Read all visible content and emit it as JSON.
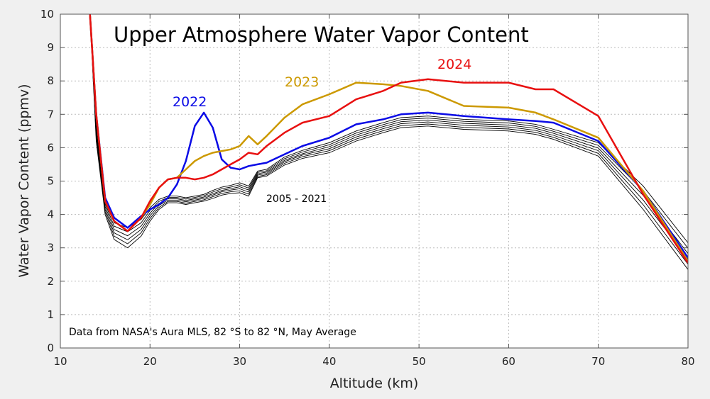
{
  "chart_data": {
    "type": "line",
    "title": "Upper Atmosphere Water Vapor Content",
    "xlabel": "Altitude (km)",
    "ylabel": "Water Vapor Content (ppmv)",
    "xlim": [
      10,
      80
    ],
    "ylim": [
      0,
      10
    ],
    "xticks": [
      10,
      20,
      30,
      40,
      50,
      60,
      70,
      80
    ],
    "yticks": [
      0,
      1,
      2,
      3,
      4,
      5,
      6,
      7,
      8,
      9,
      10
    ],
    "grid": true,
    "annotation": "Data from NASA's Aura MLS, 82 °S to 82 °N, May Average",
    "background_label": "2005 - 2021",
    "x": [
      13.3,
      14,
      15,
      16,
      17.5,
      19,
      20,
      21,
      22,
      23,
      24,
      25,
      26,
      27,
      28,
      29,
      30,
      31,
      32,
      33,
      35,
      37,
      40,
      43,
      46,
      48,
      51,
      55,
      60,
      63,
      65,
      70,
      75,
      80
    ],
    "background_series": [
      [
        10,
        6.2,
        4.0,
        3.25,
        3.0,
        3.35,
        3.8,
        4.15,
        4.35,
        4.35,
        4.3,
        4.35,
        4.4,
        4.48,
        4.58,
        4.63,
        4.65,
        4.55,
        5.1,
        5.15,
        5.48,
        5.68,
        5.85,
        6.2,
        6.45,
        6.6,
        6.65,
        6.55,
        6.5,
        6.4,
        6.25,
        5.75,
        4.15,
        2.35
      ],
      [
        10,
        6.32,
        4.08,
        3.35,
        3.12,
        3.45,
        3.88,
        4.21,
        4.39,
        4.39,
        4.34,
        4.39,
        4.44,
        4.53,
        4.63,
        4.68,
        4.71,
        4.61,
        5.14,
        5.19,
        5.53,
        5.73,
        5.91,
        6.26,
        6.51,
        6.66,
        6.71,
        6.61,
        6.56,
        6.46,
        6.31,
        5.83,
        4.29,
        2.51
      ],
      [
        10,
        6.44,
        4.16,
        3.45,
        3.24,
        3.55,
        3.96,
        4.27,
        4.43,
        4.43,
        4.38,
        4.43,
        4.48,
        4.58,
        4.68,
        4.73,
        4.77,
        4.67,
        5.18,
        5.23,
        5.58,
        5.78,
        5.97,
        6.32,
        6.57,
        6.72,
        6.77,
        6.67,
        6.62,
        6.52,
        6.37,
        5.91,
        4.43,
        2.67
      ],
      [
        10,
        6.56,
        4.24,
        3.55,
        3.36,
        3.65,
        4.04,
        4.33,
        4.47,
        4.47,
        4.42,
        4.47,
        4.52,
        4.62,
        4.72,
        4.77,
        4.83,
        4.73,
        5.22,
        5.27,
        5.62,
        5.82,
        6.03,
        6.38,
        6.63,
        6.78,
        6.83,
        6.73,
        6.68,
        6.58,
        6.43,
        5.99,
        4.57,
        2.83
      ],
      [
        10,
        6.68,
        4.32,
        3.65,
        3.48,
        3.75,
        4.12,
        4.39,
        4.51,
        4.51,
        4.46,
        4.51,
        4.56,
        4.67,
        4.77,
        4.82,
        4.89,
        4.79,
        5.26,
        5.31,
        5.67,
        5.87,
        6.09,
        6.44,
        6.69,
        6.84,
        6.89,
        6.79,
        6.74,
        6.64,
        6.49,
        6.07,
        4.71,
        2.99
      ],
      [
        10,
        6.8,
        4.4,
        3.75,
        3.6,
        3.85,
        4.2,
        4.45,
        4.55,
        4.55,
        4.5,
        4.55,
        4.6,
        4.72,
        4.82,
        4.87,
        4.95,
        4.85,
        5.3,
        5.35,
        5.72,
        5.92,
        6.15,
        6.5,
        6.75,
        6.9,
        6.95,
        6.85,
        6.8,
        6.7,
        6.55,
        6.15,
        4.85,
        3.15
      ]
    ],
    "background_color": "#000000",
    "series": [
      {
        "name": "2022",
        "color": "#0a0ae6",
        "values": [
          10,
          7,
          4.5,
          3.9,
          3.6,
          3.95,
          4.15,
          4.3,
          4.5,
          4.9,
          5.6,
          6.65,
          7.05,
          6.6,
          5.65,
          5.4,
          5.35,
          5.45,
          5.5,
          5.55,
          5.8,
          6.05,
          6.3,
          6.7,
          6.85,
          7.0,
          7.05,
          6.95,
          6.85,
          6.8,
          6.75,
          6.2,
          4.7,
          2.7
        ]
      },
      {
        "name": "2023",
        "color": "#cc9900",
        "values": [
          10,
          7,
          4.4,
          3.8,
          3.5,
          3.9,
          4.3,
          4.8,
          5.05,
          5.1,
          5.35,
          5.6,
          5.75,
          5.85,
          5.9,
          5.95,
          6.05,
          6.35,
          6.1,
          6.35,
          6.9,
          7.3,
          7.6,
          7.95,
          7.9,
          7.85,
          7.7,
          7.25,
          7.2,
          7.05,
          6.85,
          6.3,
          4.7,
          2.6
        ]
      },
      {
        "name": "2024",
        "color": "#e81010",
        "values": [
          10,
          7,
          4.4,
          3.8,
          3.5,
          3.9,
          4.4,
          4.8,
          5.05,
          5.1,
          5.1,
          5.05,
          5.1,
          5.2,
          5.35,
          5.5,
          5.65,
          5.85,
          5.8,
          6.05,
          6.45,
          6.75,
          6.95,
          7.45,
          7.7,
          7.95,
          8.05,
          7.95,
          7.95,
          7.75,
          7.75,
          6.95,
          4.6,
          2.55
        ]
      }
    ]
  }
}
